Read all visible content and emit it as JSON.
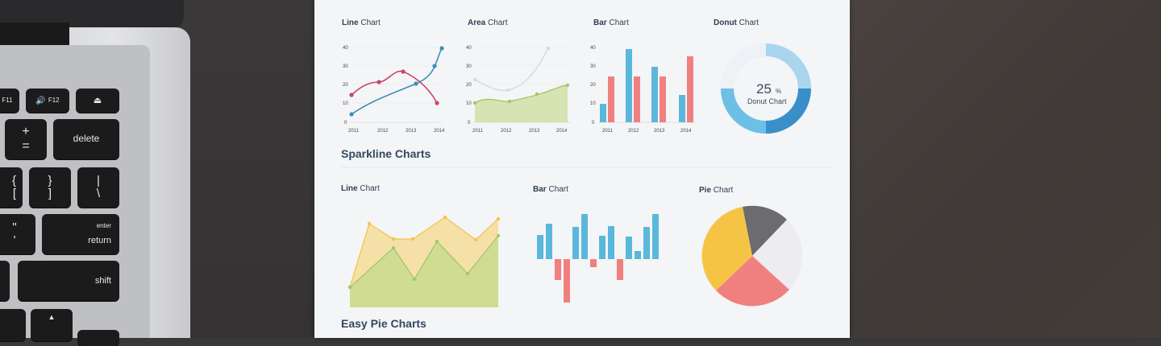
{
  "keyboard": {
    "f11": "F11",
    "f12": "F12",
    "plus": "+",
    "equals": "=",
    "delete": "delete",
    "brace_left": "{",
    "bracket_left": "[",
    "brace_right": "}",
    "bracket_right": "]",
    "pipe": "|",
    "backslash": "\\",
    "quote": "\"",
    "apostrophe": "'",
    "enter": "enter",
    "return": "return",
    "shift": "shift"
  },
  "paper": {
    "top_charts": [
      {
        "bold": "Line",
        "rest": " Chart"
      },
      {
        "bold": "Area",
        "rest": " Chart"
      },
      {
        "bold": "Bar",
        "rest": " Chart"
      },
      {
        "bold": "Donut",
        "rest": " Chart"
      }
    ],
    "section1_title": "Sparkline Charts",
    "bottom_charts": [
      {
        "bold": "Line",
        "rest": " Chart"
      },
      {
        "bold": "Bar",
        "rest": " Chart"
      },
      {
        "bold": "Pie",
        "rest": " Chart"
      }
    ],
    "section2_title": "Easy Pie Charts",
    "donut_percent": "25",
    "donut_pct_sign": "%",
    "donut_label": "Donut Chart",
    "years": [
      "2011",
      "2012",
      "2013",
      "2014"
    ],
    "y_ticks": [
      "0",
      "10",
      "20",
      "30",
      "40"
    ]
  },
  "colors": {
    "blue": "#5bb7dc",
    "red": "#f08080",
    "magenta": "#c8456e",
    "teal": "#3a8fb7",
    "green": "#a6c66d",
    "yellow": "#f6c445",
    "gray": "#6b6b70"
  }
}
